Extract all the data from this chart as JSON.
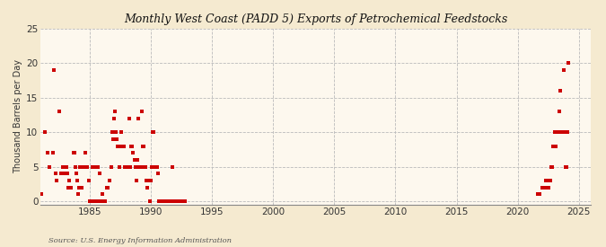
{
  "title": "Monthly West Coast (PADD 5) Exports of Petrochemical Feedstocks",
  "ylabel": "Thousand Barrels per Day",
  "source": "Source: U.S. Energy Information Administration",
  "background_color": "#f5ead0",
  "plot_background_color": "#fdf8ee",
  "marker_color": "#cc0000",
  "marker_size": 3.5,
  "xlim": [
    1981.0,
    2026.0
  ],
  "ylim": [
    -0.5,
    25
  ],
  "yticks": [
    0,
    5,
    10,
    15,
    20,
    25
  ],
  "xticks": [
    1985,
    1990,
    1995,
    2000,
    2005,
    2010,
    2015,
    2020,
    2025
  ],
  "data": [
    [
      1981.08,
      1.0
    ],
    [
      1981.33,
      10.0
    ],
    [
      1981.58,
      7.0
    ],
    [
      1981.75,
      5.0
    ],
    [
      1982.0,
      7.0
    ],
    [
      1982.08,
      19.0
    ],
    [
      1982.25,
      4.0
    ],
    [
      1982.33,
      3.0
    ],
    [
      1982.5,
      13.0
    ],
    [
      1982.67,
      4.0
    ],
    [
      1982.83,
      5.0
    ],
    [
      1983.0,
      4.0
    ],
    [
      1983.08,
      5.0
    ],
    [
      1983.17,
      4.0
    ],
    [
      1983.25,
      2.0
    ],
    [
      1983.33,
      3.0
    ],
    [
      1983.5,
      2.0
    ],
    [
      1983.67,
      7.0
    ],
    [
      1983.75,
      7.0
    ],
    [
      1983.83,
      5.0
    ],
    [
      1983.92,
      4.0
    ],
    [
      1984.0,
      3.0
    ],
    [
      1984.08,
      1.0
    ],
    [
      1984.17,
      2.0
    ],
    [
      1984.25,
      5.0
    ],
    [
      1984.33,
      2.0
    ],
    [
      1984.5,
      5.0
    ],
    [
      1984.67,
      7.0
    ],
    [
      1984.83,
      5.0
    ],
    [
      1984.92,
      3.0
    ],
    [
      1985.0,
      0.0
    ],
    [
      1985.08,
      0.0
    ],
    [
      1985.17,
      0.0
    ],
    [
      1985.25,
      5.0
    ],
    [
      1985.33,
      0.0
    ],
    [
      1985.5,
      5.0
    ],
    [
      1985.58,
      0.0
    ],
    [
      1985.67,
      5.0
    ],
    [
      1985.75,
      0.0
    ],
    [
      1985.83,
      4.0
    ],
    [
      1986.0,
      0.0
    ],
    [
      1986.08,
      1.0
    ],
    [
      1986.17,
      0.0
    ],
    [
      1986.25,
      0.0
    ],
    [
      1986.42,
      2.0
    ],
    [
      1986.5,
      2.0
    ],
    [
      1986.67,
      3.0
    ],
    [
      1986.75,
      5.0
    ],
    [
      1986.83,
      10.0
    ],
    [
      1986.92,
      9.0
    ],
    [
      1987.0,
      12.0
    ],
    [
      1987.08,
      13.0
    ],
    [
      1987.17,
      10.0
    ],
    [
      1987.25,
      9.0
    ],
    [
      1987.33,
      8.0
    ],
    [
      1987.42,
      5.0
    ],
    [
      1987.5,
      8.0
    ],
    [
      1987.58,
      10.0
    ],
    [
      1987.67,
      8.0
    ],
    [
      1987.75,
      8.0
    ],
    [
      1987.83,
      8.0
    ],
    [
      1987.92,
      5.0
    ],
    [
      1988.0,
      5.0
    ],
    [
      1988.08,
      5.0
    ],
    [
      1988.17,
      5.0
    ],
    [
      1988.25,
      12.0
    ],
    [
      1988.33,
      5.0
    ],
    [
      1988.42,
      8.0
    ],
    [
      1988.5,
      8.0
    ],
    [
      1988.58,
      7.0
    ],
    [
      1988.67,
      6.0
    ],
    [
      1988.75,
      5.0
    ],
    [
      1988.83,
      3.0
    ],
    [
      1988.92,
      6.0
    ],
    [
      1989.0,
      12.0
    ],
    [
      1989.08,
      5.0
    ],
    [
      1989.17,
      5.0
    ],
    [
      1989.25,
      13.0
    ],
    [
      1989.33,
      8.0
    ],
    [
      1989.42,
      8.0
    ],
    [
      1989.5,
      5.0
    ],
    [
      1989.58,
      5.0
    ],
    [
      1989.67,
      3.0
    ],
    [
      1989.75,
      2.0
    ],
    [
      1989.83,
      3.0
    ],
    [
      1989.92,
      0.0
    ],
    [
      1990.0,
      3.0
    ],
    [
      1990.08,
      5.0
    ],
    [
      1990.17,
      10.0
    ],
    [
      1990.25,
      10.0
    ],
    [
      1990.33,
      5.0
    ],
    [
      1990.5,
      5.0
    ],
    [
      1990.58,
      4.0
    ],
    [
      1990.67,
      0.0
    ],
    [
      1990.75,
      0.0
    ],
    [
      1990.83,
      0.0
    ],
    [
      1990.92,
      0.0
    ],
    [
      1991.0,
      0.0
    ],
    [
      1991.08,
      0.0
    ],
    [
      1991.17,
      0.0
    ],
    [
      1991.33,
      0.0
    ],
    [
      1991.5,
      0.0
    ],
    [
      1991.67,
      0.0
    ],
    [
      1991.75,
      5.0
    ],
    [
      1991.83,
      0.0
    ],
    [
      1991.92,
      0.0
    ],
    [
      1992.0,
      0.0
    ],
    [
      1992.08,
      0.0
    ],
    [
      1992.17,
      0.0
    ],
    [
      1992.25,
      0.0
    ],
    [
      1992.33,
      0.0
    ],
    [
      1992.42,
      0.0
    ],
    [
      1992.5,
      0.0
    ],
    [
      1992.58,
      0.0
    ],
    [
      1992.67,
      0.0
    ],
    [
      1992.75,
      0.0
    ],
    [
      1992.83,
      0.0
    ],
    [
      2021.67,
      1.0
    ],
    [
      2021.75,
      1.0
    ],
    [
      2022.0,
      2.0
    ],
    [
      2022.17,
      2.0
    ],
    [
      2022.25,
      2.0
    ],
    [
      2022.33,
      3.0
    ],
    [
      2022.5,
      2.0
    ],
    [
      2022.58,
      3.0
    ],
    [
      2022.67,
      3.0
    ],
    [
      2022.75,
      5.0
    ],
    [
      2022.83,
      5.0
    ],
    [
      2022.92,
      8.0
    ],
    [
      2023.0,
      10.0
    ],
    [
      2023.08,
      8.0
    ],
    [
      2023.17,
      10.0
    ],
    [
      2023.25,
      10.0
    ],
    [
      2023.33,
      10.0
    ],
    [
      2023.42,
      13.0
    ],
    [
      2023.5,
      16.0
    ],
    [
      2023.58,
      10.0
    ],
    [
      2023.67,
      10.0
    ],
    [
      2023.75,
      19.0
    ],
    [
      2023.83,
      10.0
    ],
    [
      2023.92,
      5.0
    ],
    [
      2024.0,
      5.0
    ],
    [
      2024.08,
      10.0
    ],
    [
      2024.17,
      20.0
    ]
  ]
}
